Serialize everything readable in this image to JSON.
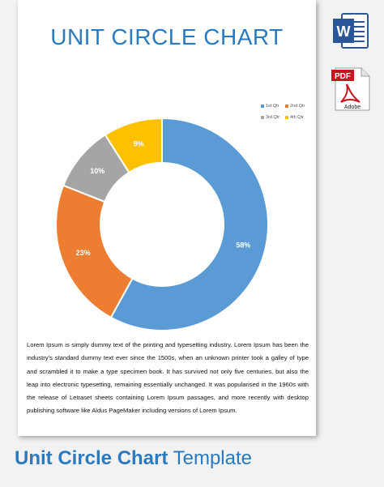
{
  "chart_data": {
    "type": "pie",
    "variant": "donut",
    "title": "UNIT CIRCLE CHART",
    "categories": [
      "1st Qtr",
      "2nd Qtr",
      "3rd Qtr",
      "4th Qtr"
    ],
    "values": [
      58,
      23,
      10,
      9
    ],
    "value_labels": [
      "58%",
      "23%",
      "10%",
      "9%"
    ],
    "colors": [
      "#5b9bd5",
      "#ed7d31",
      "#a5a5a5",
      "#ffc000"
    ],
    "legend_position": "top-right"
  },
  "document": {
    "body_text": "Lorem Ipsum is simply dummy text of the printing and typesetting industry. Lorem Ipsum has been the industry's standard dummy text ever since the 1500s, when an unknown printer took a galley of type and scrambled it to make a type specimen book. It has survived not only five centuries, but also the leap into electronic typesetting, remaining essentially unchanged. It was popularised in the 1960s with the release of Letraset sheets containing Lorem Ipsum passages, and more recently with desktop publishing software like Aldus PageMaker including versions of Lorem Ipsum."
  },
  "side_icons": {
    "word_letter": "W",
    "pdf_label": "PDF",
    "adobe_label": "Adobe"
  },
  "footer": {
    "title_bold": "Unit Circle Chart",
    "title_regular": "Template"
  }
}
